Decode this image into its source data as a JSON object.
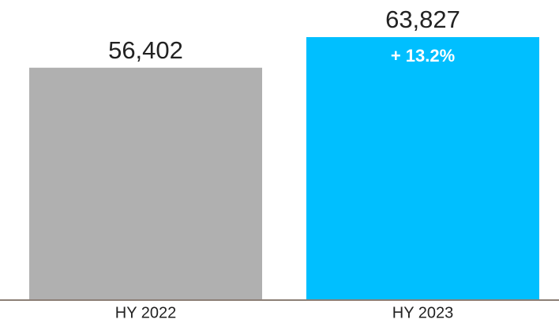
{
  "chart_data": {
    "type": "bar",
    "categories": [
      "HY 2022",
      "HY 2023"
    ],
    "values": [
      56402,
      63827
    ],
    "value_labels": [
      "56,402",
      "63,827"
    ],
    "colors": [
      "#b0b0b0",
      "#00bfff"
    ],
    "annotation": "+ 13.2%"
  }
}
